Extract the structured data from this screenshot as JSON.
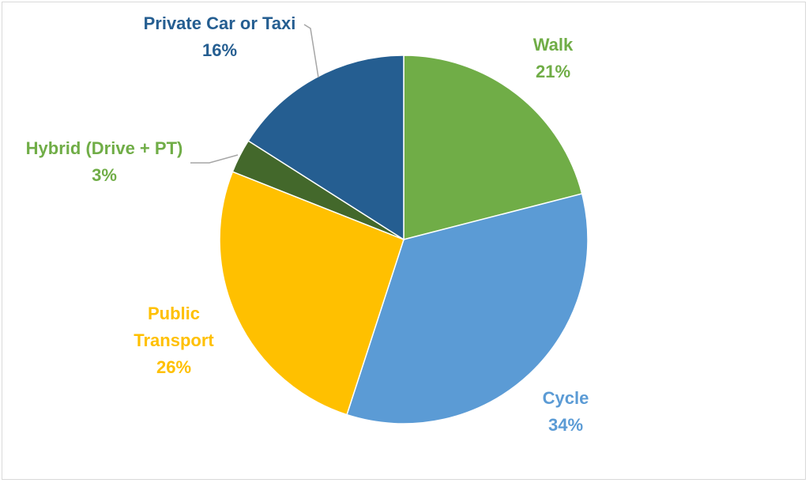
{
  "chart_data": {
    "type": "pie",
    "title": "",
    "legend": "none",
    "slices": [
      {
        "label": "Walk",
        "value": 21,
        "value_label": "21%",
        "color": "#70ad47",
        "label_color": "#70ad47"
      },
      {
        "label": "Cycle",
        "value": 34,
        "value_label": "34%",
        "color": "#5b9bd5",
        "label_color": "#5b9bd5"
      },
      {
        "label": "Public Transport",
        "label_lines": [
          "Public",
          "Transport"
        ],
        "value": 26,
        "value_label": "26%",
        "color": "#ffc000",
        "label_color": "#ffc000"
      },
      {
        "label": "Hybrid (Drive + PT)",
        "value": 3,
        "value_label": "3%",
        "color": "#43682b",
        "label_color": "#70ad47"
      },
      {
        "label": "Private Car or Taxi",
        "value": 16,
        "value_label": "16%",
        "color": "#255e91",
        "label_color": "#255e91"
      }
    ]
  }
}
